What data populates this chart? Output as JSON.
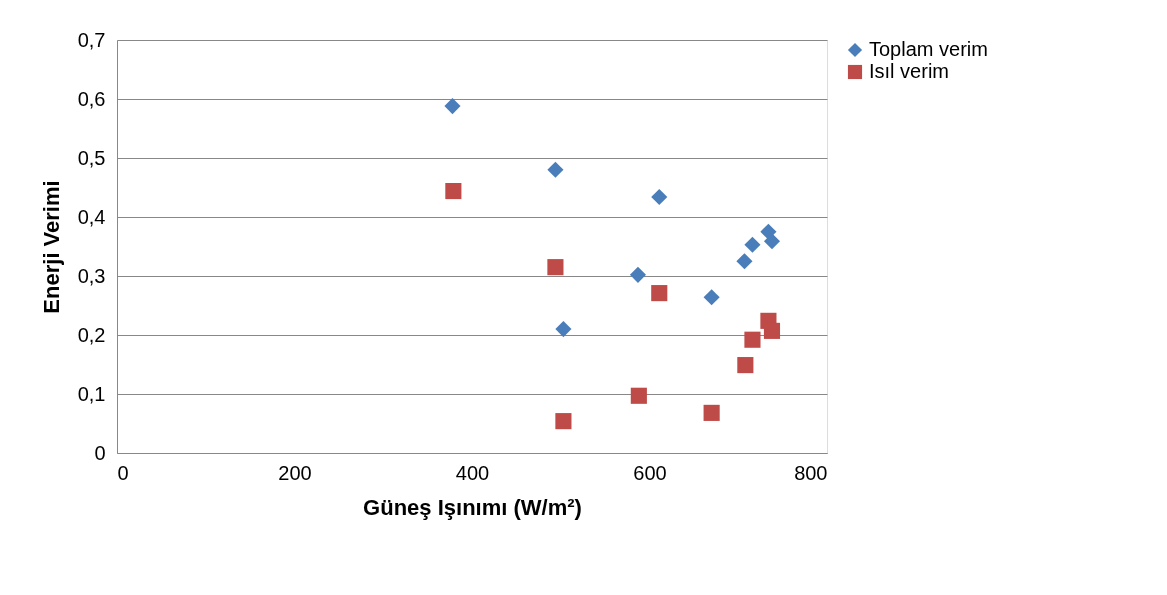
{
  "chart_data": {
    "type": "scatter",
    "xlabel": "Güneş Işınımı (W/m²)",
    "ylabel": "Enerji Verimi",
    "xlim": [
      0,
      800
    ],
    "xticks": [
      0,
      200,
      400,
      600,
      800
    ],
    "ylim": [
      0,
      0.7
    ],
    "yticks": [
      {
        "value": 0,
        "label": "0"
      },
      {
        "value": 0.1,
        "label": "0,1"
      },
      {
        "value": 0.2,
        "label": "0,2"
      },
      {
        "value": 0.3,
        "label": "0,3"
      },
      {
        "value": 0.4,
        "label": "0,4"
      },
      {
        "value": 0.5,
        "label": "0,5"
      },
      {
        "value": 0.6,
        "label": "0,6"
      },
      {
        "value": 0.7,
        "label": "0,7"
      }
    ],
    "grid": "y",
    "legend": "right",
    "series": [
      {
        "name": "Toplam verim",
        "color": "#4a7ebb",
        "marker": "diamond",
        "x": [
          378,
          494,
          503,
          587,
          611,
          670,
          707,
          716,
          734,
          738
        ],
        "values": [
          0.588,
          0.48,
          0.21,
          0.302,
          0.434,
          0.264,
          0.325,
          0.353,
          0.375,
          0.359
        ]
      },
      {
        "name": "Isıl verim",
        "color": "#be4b48",
        "marker": "square",
        "x": [
          379,
          494,
          503,
          588,
          611,
          670,
          708,
          716,
          734,
          738
        ],
        "values": [
          0.444,
          0.315,
          0.054,
          0.097,
          0.271,
          0.068,
          0.149,
          0.192,
          0.224,
          0.207
        ]
      }
    ]
  }
}
